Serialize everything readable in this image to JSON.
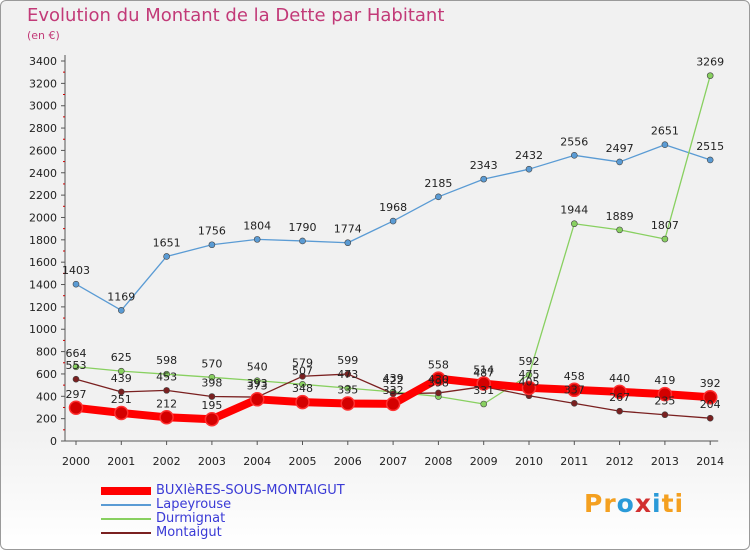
{
  "chart_data": {
    "type": "line",
    "title": "Evolution du Montant de la Dette par Habitant",
    "subtitle": "(en €)",
    "x": [
      "2000",
      "2001",
      "2002",
      "2003",
      "2004",
      "2005",
      "2006",
      "2007",
      "2008",
      "2009",
      "2010",
      "2011",
      "2012",
      "2013",
      "2014"
    ],
    "ylim": [
      0,
      3400
    ],
    "yticks": [
      0,
      200,
      400,
      600,
      800,
      1000,
      1200,
      1400,
      1600,
      1800,
      2000,
      2200,
      2400,
      2600,
      2800,
      3000,
      3200,
      3400
    ],
    "grid": false,
    "legend_position": "bottom-left",
    "series": [
      {
        "name": "BUXIèRES-SOUS-MONTAIGUT",
        "color": "#ff0000",
        "emphasis": true,
        "values": [
          297,
          251,
          212,
          195,
          373,
          348,
          335,
          332,
          558,
          514,
          475,
          458,
          440,
          419,
          392
        ]
      },
      {
        "name": "Lapeyrouse",
        "color": "#5a9bd4",
        "values": [
          1403,
          1169,
          1651,
          1756,
          1804,
          1790,
          1774,
          1968,
          2185,
          2343,
          2432,
          2556,
          2497,
          2651,
          2515
        ]
      },
      {
        "name": "Durmignat",
        "color": "#88d060",
        "values": [
          664,
          625,
          598,
          570,
          540,
          507,
          473,
          439,
          398,
          331,
          592,
          1944,
          1889,
          1807,
          3269
        ]
      },
      {
        "name": "Montaigut",
        "color": "#7a2020",
        "values": [
          553,
          439,
          453,
          398,
          393,
          579,
          599,
          422,
          430,
          487,
          405,
          337,
          267,
          235,
          204
        ]
      }
    ]
  },
  "logo": {
    "letters": [
      "P",
      "r",
      "o",
      "x",
      "i",
      "t",
      "i"
    ],
    "colors": [
      "#f4a020",
      "#f4a020",
      "#2a9ad8",
      "#d23030",
      "#2a9ad8",
      "#f4a020",
      "#f4a020"
    ]
  }
}
